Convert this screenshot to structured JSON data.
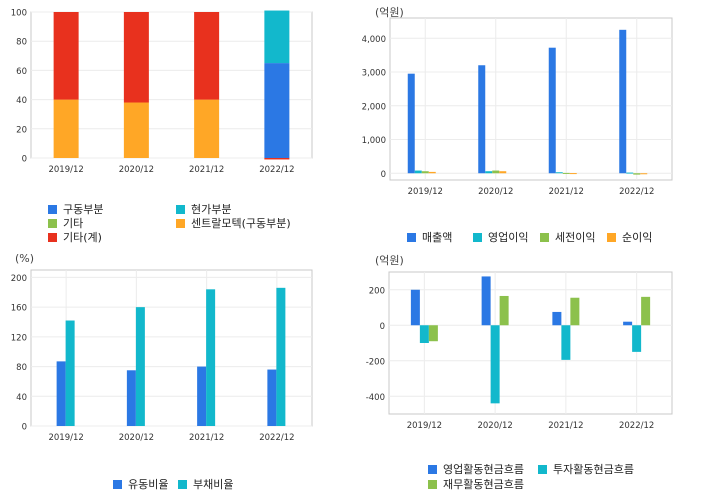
{
  "colors": {
    "blue": "#2b78e4",
    "cyan": "#12b8cc",
    "green": "#8cc14c",
    "orange": "#ffa726",
    "red": "#e8311e"
  },
  "chart_data": [
    {
      "type": "bar",
      "stacked": true,
      "unit": "",
      "categories": [
        "2019/12",
        "2020/12",
        "2021/12",
        "2022/12"
      ],
      "ylim": [
        0,
        100
      ],
      "yticks": [
        0,
        20,
        40,
        60,
        80,
        100
      ],
      "series": [
        {
          "name": "구동부분",
          "color": "blue",
          "values": [
            0,
            0,
            0,
            65
          ]
        },
        {
          "name": "현가부분",
          "color": "cyan",
          "values": [
            0,
            0,
            0,
            36
          ]
        },
        {
          "name": "기타",
          "color": "green",
          "values": [
            0,
            0,
            0,
            0
          ]
        },
        {
          "name": "센트랄모텍(구동부분)",
          "color": "orange",
          "values": [
            40,
            38,
            40,
            0
          ]
        },
        {
          "name": "기타(계)",
          "color": "red",
          "values": [
            60,
            62,
            60,
            -1
          ]
        }
      ]
    },
    {
      "type": "bar",
      "unit": "(억원)",
      "categories": [
        "2019/12",
        "2020/12",
        "2021/12",
        "2022/12"
      ],
      "ylim": [
        -200,
        4600
      ],
      "yticks": [
        0,
        1000,
        2000,
        3000,
        4000
      ],
      "ytick_labels": [
        "0",
        "1,000",
        "2,000",
        "3,000",
        "4,000"
      ],
      "series": [
        {
          "name": "매출액",
          "color": "blue",
          "values": [
            2950,
            3200,
            3720,
            4250
          ]
        },
        {
          "name": "영업이익",
          "color": "cyan",
          "values": [
            80,
            60,
            30,
            20
          ]
        },
        {
          "name": "세전이익",
          "color": "green",
          "values": [
            60,
            80,
            10,
            -40
          ]
        },
        {
          "name": "순이익",
          "color": "orange",
          "values": [
            40,
            60,
            5,
            -30
          ]
        }
      ]
    },
    {
      "type": "bar",
      "unit": "(%)",
      "categories": [
        "2019/12",
        "2020/12",
        "2021/12",
        "2022/12"
      ],
      "ylim": [
        0,
        210
      ],
      "yticks": [
        0,
        40,
        80,
        120,
        160,
        200
      ],
      "series": [
        {
          "name": "유동비율",
          "color": "blue",
          "values": [
            87,
            75,
            80,
            76
          ]
        },
        {
          "name": "부채비율",
          "color": "cyan",
          "values": [
            142,
            160,
            184,
            186
          ]
        }
      ]
    },
    {
      "type": "bar",
      "unit": "(억원)",
      "categories": [
        "2019/12",
        "2020/12",
        "2021/12",
        "2022/12"
      ],
      "ylim": [
        -500,
        300
      ],
      "yticks": [
        -400,
        -200,
        0,
        200
      ],
      "series": [
        {
          "name": "영업활동현금흐름",
          "color": "blue",
          "values": [
            200,
            275,
            75,
            20
          ]
        },
        {
          "name": "투자활동현금흐름",
          "color": "cyan",
          "values": [
            -100,
            -440,
            -195,
            -150
          ]
        },
        {
          "name": "재무활동현금흐름",
          "color": "green",
          "values": [
            -90,
            165,
            155,
            160
          ]
        }
      ]
    }
  ]
}
